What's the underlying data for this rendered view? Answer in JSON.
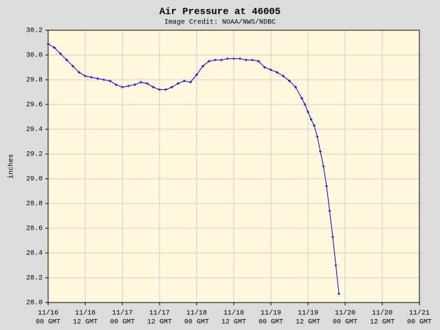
{
  "chart_data": {
    "type": "line",
    "title": "Air Pressure at 46005",
    "subtitle": "Image Credit: NOAA/NWS/NDBC",
    "y_label": "inches",
    "grid": true,
    "xlim": [
      "11/16 00",
      "11/21 00"
    ],
    "xticks": [
      {
        "value": "11/16 00",
        "label": [
          "11/16",
          "00 GMT"
        ]
      },
      {
        "value": "11/16 12",
        "label": [
          "11/16",
          "12 GMT"
        ]
      },
      {
        "value": "11/17 00",
        "label": [
          "11/17",
          "00 GMT"
        ]
      },
      {
        "value": "11/17 12",
        "label": [
          "11/17",
          "12 GMT"
        ]
      },
      {
        "value": "11/18 00",
        "label": [
          "11/18",
          "00 GMT"
        ]
      },
      {
        "value": "11/18 12",
        "label": [
          "11/18",
          "12 GMT"
        ]
      },
      {
        "value": "11/19 00",
        "label": [
          "11/19",
          "00 GMT"
        ]
      },
      {
        "value": "11/19 12",
        "label": [
          "11/19",
          "12 GMT"
        ]
      },
      {
        "value": "11/20 00",
        "label": [
          "11/20",
          "00 GMT"
        ]
      },
      {
        "value": "11/20 12",
        "label": [
          "11/20",
          "12 GMT"
        ]
      },
      {
        "value": "11/21 00",
        "label": [
          "11/21",
          "00 GMT"
        ]
      }
    ],
    "ylim": [
      28.0,
      30.2
    ],
    "yticks": [
      {
        "value": 28.0,
        "label": "28.0"
      },
      28.2,
      28.4,
      28.6,
      28.8,
      {
        "value": 29.0,
        "label": "29.0"
      },
      29.2,
      29.4,
      29.6,
      29.8,
      {
        "value": 30.0,
        "label": "30.0"
      },
      30.2
    ],
    "x": [
      "11/16 00",
      "11/16 02",
      "11/16 04",
      "11/16 06",
      "11/16 08",
      "11/16 10",
      "11/16 12",
      "11/16 14",
      "11/16 16",
      "11/16 18",
      "11/16 20",
      "11/16 22",
      "11/17 00",
      "11/17 02",
      "11/17 04",
      "11/17 06",
      "11/17 08",
      "11/17 10",
      "11/17 12",
      "11/17 14",
      "11/17 16",
      "11/17 18",
      "11/17 20",
      "11/17 22",
      "11/18 00",
      "11/18 02",
      "11/18 04",
      "11/18 06",
      "11/18 08",
      "11/18 10",
      "11/18 12",
      "11/18 14",
      "11/18 16",
      "11/18 18",
      "11/18 20",
      "11/18 22",
      "11/19 00",
      "11/19 02",
      "11/19 04",
      "11/19 06",
      "11/19 08",
      "11/19 10",
      "11/19 11",
      "11/19 12",
      "11/19 13",
      "11/19 14",
      "11/19 15",
      "11/19 16",
      "11/19 17",
      "11/19 18",
      "11/19 19",
      "11/19 20",
      "11/19 21",
      "11/19 22"
    ],
    "series": [
      {
        "name": "Air Pressure",
        "color": "#0000cc",
        "values": [
          30.09,
          30.06,
          30.01,
          29.96,
          29.91,
          29.86,
          29.83,
          29.82,
          29.81,
          29.8,
          29.79,
          29.76,
          29.74,
          29.75,
          29.76,
          29.78,
          29.77,
          29.74,
          29.72,
          29.72,
          29.74,
          29.77,
          29.79,
          29.78,
          29.84,
          29.91,
          29.95,
          29.96,
          29.96,
          29.97,
          29.97,
          29.97,
          29.96,
          29.96,
          29.95,
          29.9,
          29.88,
          29.86,
          29.83,
          29.79,
          29.74,
          29.65,
          29.6,
          29.54,
          29.48,
          29.43,
          29.34,
          29.22,
          29.1,
          28.94,
          28.74,
          28.53,
          28.3,
          28.07
        ]
      }
    ]
  }
}
